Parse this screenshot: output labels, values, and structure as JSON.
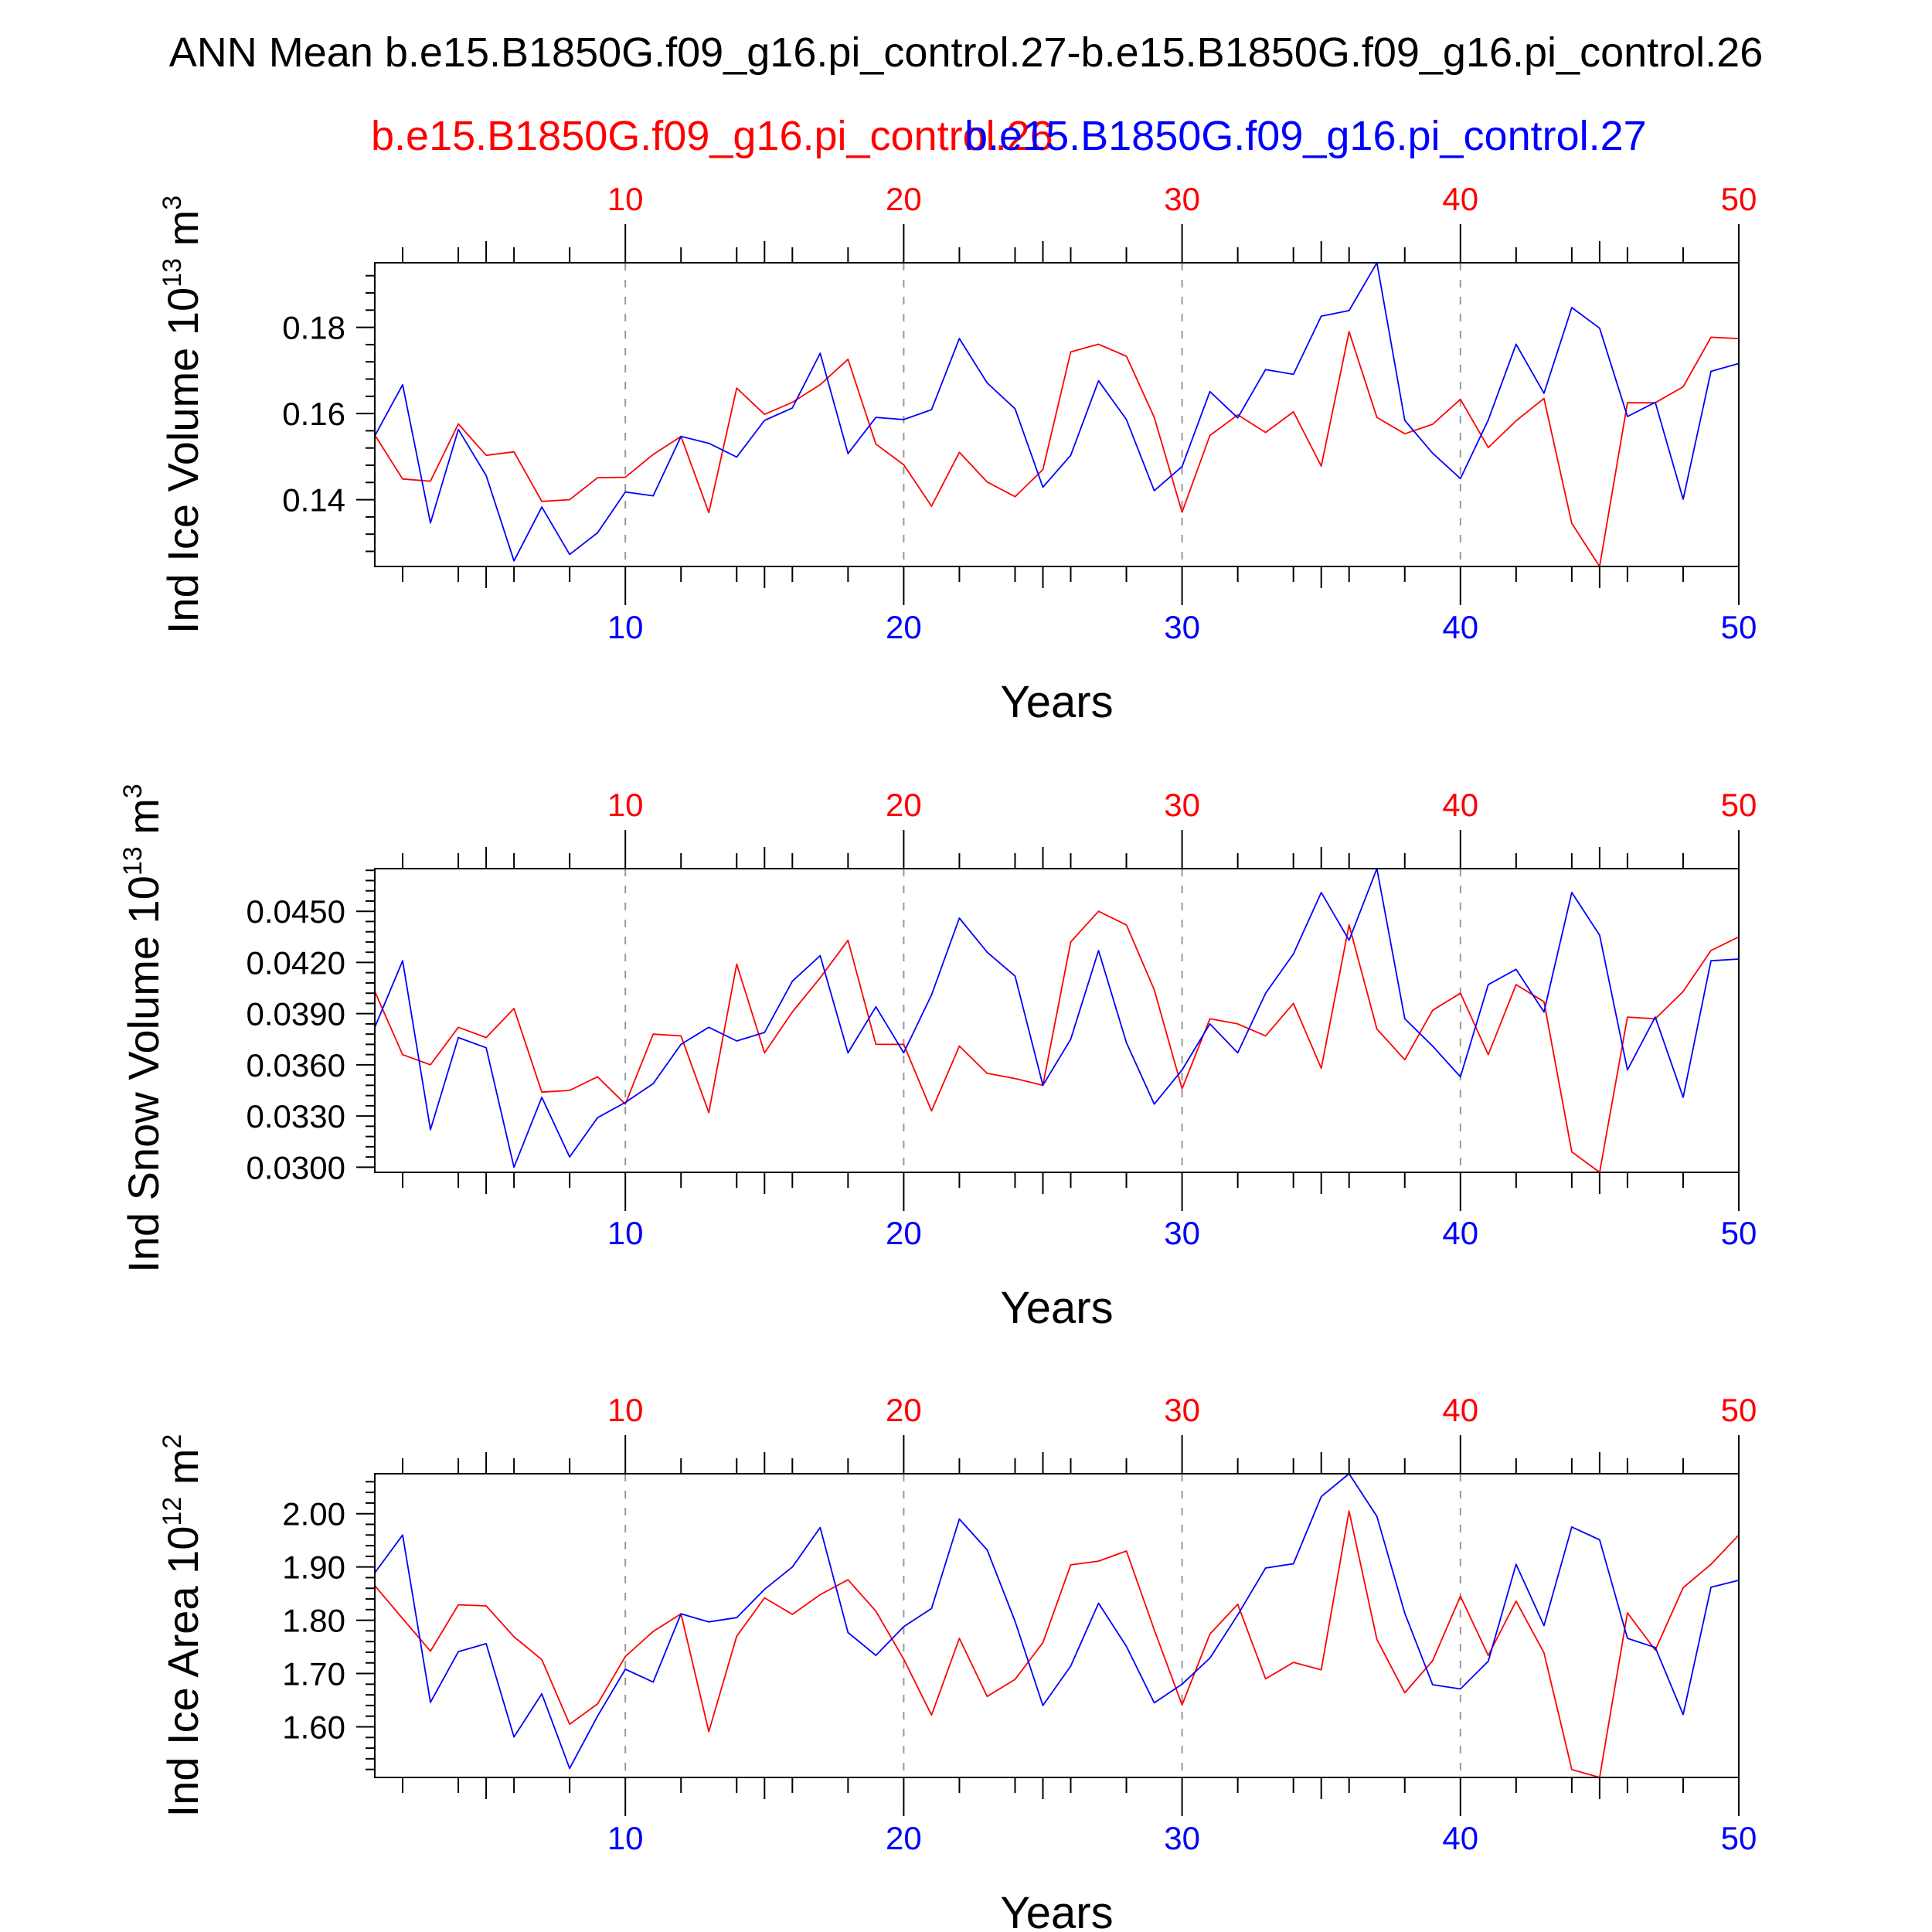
{
  "title": "ANN Mean b.e15.B1850G.f09_g16.pi_control.27-b.e15.B1850G.f09_g16.pi_control.26",
  "legend": {
    "red_label": "b.e15.B1850G.f09_g16.pi_control.26",
    "blue_label": "b.e15.B1850G.f09_g16.pi_control.27"
  },
  "colors": {
    "red": "#ff0000",
    "blue": "#0000ff",
    "axis": "#000000",
    "grid": "#999999"
  },
  "chart_data": [
    {
      "type": "line",
      "ylabel_main": "Ind Ice Volume 10",
      "ylabel_exp": "13",
      "ylabel_unit": " m",
      "ylabel_unit_exp": "3",
      "xlabel": "Years",
      "xlim": [
        1,
        50
      ],
      "ylim": [
        0.1245,
        0.195
      ],
      "xticks": [
        10,
        20,
        30,
        40,
        50
      ],
      "xtick_labels": [
        "10",
        "20",
        "30",
        "40",
        "50"
      ],
      "yticks": [
        0.14,
        0.16,
        0.18
      ],
      "ytick_labels": [
        "0.14",
        "0.16",
        "0.18"
      ],
      "grid": "vertical-dashed",
      "series": [
        {
          "name": "b.e15.B1850G.f09_g16.pi_control.26",
          "color": "red",
          "values": [
            0.155,
            0.1448,
            0.1443,
            0.1576,
            0.1503,
            0.1511,
            0.1396,
            0.14,
            0.1451,
            0.1452,
            0.1505,
            0.1547,
            0.137,
            0.1659,
            0.1598,
            0.1626,
            0.1667,
            0.1726,
            0.1529,
            0.1481,
            0.1385,
            0.151,
            0.1441,
            0.1407,
            0.147,
            0.1743,
            0.1761,
            0.1733,
            0.1591,
            0.1371,
            0.1549,
            0.1597,
            0.1556,
            0.1604,
            0.1478,
            0.179,
            0.1591,
            0.1553,
            0.1575,
            0.1633,
            0.1521,
            0.1583,
            0.1635,
            0.1345,
            0.1245,
            0.1625,
            0.1625,
            0.1662,
            0.1777,
            0.1774
          ]
        },
        {
          "name": "b.e15.B1850G.f09_g16.pi_control.27",
          "color": "blue",
          "values": [
            0.1548,
            0.1667,
            0.1346,
            0.1563,
            0.1456,
            0.1258,
            0.1383,
            0.1273,
            0.1323,
            0.1418,
            0.1409,
            0.1547,
            0.1531,
            0.1499,
            0.1584,
            0.1613,
            0.174,
            0.1507,
            0.1591,
            0.1586,
            0.1609,
            0.1774,
            0.1671,
            0.1611,
            0.1429,
            0.1503,
            0.1676,
            0.1586,
            0.1421,
            0.1477,
            0.1651,
            0.159,
            0.1702,
            0.1691,
            0.1826,
            0.1839,
            0.195,
            0.1584,
            0.1508,
            0.1449,
            0.1585,
            0.1761,
            0.1647,
            0.1846,
            0.1798,
            0.1593,
            0.1626,
            0.1401,
            0.1698,
            0.1716
          ]
        }
      ]
    },
    {
      "type": "line",
      "ylabel_main": "Ind Snow Volume 10",
      "ylabel_exp": "13",
      "ylabel_unit": " m",
      "ylabel_unit_exp": "3",
      "xlabel": "Years",
      "xlim": [
        1,
        50
      ],
      "ylim": [
        0.0297,
        0.0475
      ],
      "xticks": [
        10,
        20,
        30,
        40,
        50
      ],
      "xtick_labels": [
        "10",
        "20",
        "30",
        "40",
        "50"
      ],
      "yticks": [
        0.03,
        0.033,
        0.036,
        0.039,
        0.042,
        0.045
      ],
      "ytick_labels": [
        "0.0300",
        "0.0330",
        "0.0360",
        "0.0390",
        "0.0420",
        "0.0450"
      ],
      "grid": "vertical-dashed",
      "series": [
        {
          "name": "b.e15.B1850G.f09_g16.pi_control.26",
          "color": "red",
          "values": [
            0.0403,
            0.0366,
            0.036,
            0.0382,
            0.0376,
            0.0393,
            0.0344,
            0.0345,
            0.0353,
            0.0337,
            0.0378,
            0.0377,
            0.0332,
            0.0419,
            0.0367,
            0.0391,
            0.0411,
            0.0433,
            0.0372,
            0.0372,
            0.0333,
            0.0371,
            0.0355,
            0.0352,
            0.0348,
            0.0432,
            0.045,
            0.0442,
            0.0404,
            0.0346,
            0.0387,
            0.0384,
            0.0377,
            0.0396,
            0.0358,
            0.0442,
            0.0381,
            0.0363,
            0.0392,
            0.0402,
            0.0366,
            0.0407,
            0.0397,
            0.0309,
            0.0297,
            0.0388,
            0.0387,
            0.0403,
            0.0427,
            0.0435
          ]
        },
        {
          "name": "b.e15.B1850G.f09_g16.pi_control.27",
          "color": "blue",
          "values": [
            0.0382,
            0.0421,
            0.0322,
            0.0376,
            0.037,
            0.03,
            0.0341,
            0.0306,
            0.0329,
            0.0338,
            0.0349,
            0.0372,
            0.0382,
            0.0374,
            0.0379,
            0.0409,
            0.0424,
            0.0367,
            0.0394,
            0.0367,
            0.0401,
            0.0446,
            0.0426,
            0.0412,
            0.0348,
            0.0375,
            0.0427,
            0.0373,
            0.0337,
            0.0357,
            0.0384,
            0.0367,
            0.0402,
            0.0425,
            0.0461,
            0.0433,
            0.0475,
            0.0387,
            0.0371,
            0.0353,
            0.0407,
            0.0416,
            0.0391,
            0.0461,
            0.0436,
            0.0357,
            0.0388,
            0.0341,
            0.0421,
            0.0422
          ]
        }
      ]
    },
    {
      "type": "line",
      "ylabel_main": "Ind Ice Area 10",
      "ylabel_exp": "12",
      "ylabel_unit": " m",
      "ylabel_unit_exp": "2",
      "xlabel": "Years",
      "xlim": [
        1,
        50
      ],
      "ylim": [
        1.505,
        2.075
      ],
      "xticks": [
        10,
        20,
        30,
        40,
        50
      ],
      "xtick_labels": [
        "10",
        "20",
        "30",
        "40",
        "50"
      ],
      "yticks": [
        1.6,
        1.7,
        1.8,
        1.9,
        2.0
      ],
      "ytick_labels": [
        "1.60",
        "1.70",
        "1.80",
        "1.90",
        "2.00"
      ],
      "grid": "vertical-dashed",
      "series": [
        {
          "name": "b.e15.B1850G.f09_g16.pi_control.26",
          "color": "red",
          "values": [
            1.865,
            1.803,
            1.742,
            1.829,
            1.827,
            1.769,
            1.726,
            1.605,
            1.643,
            1.732,
            1.779,
            1.812,
            1.591,
            1.77,
            1.842,
            1.811,
            1.848,
            1.876,
            1.817,
            1.727,
            1.622,
            1.766,
            1.657,
            1.689,
            1.758,
            1.904,
            1.911,
            1.93,
            1.782,
            1.641,
            1.774,
            1.83,
            1.69,
            1.721,
            1.707,
            2.005,
            1.764,
            1.664,
            1.724,
            1.845,
            1.734,
            1.836,
            1.739,
            1.52,
            1.505,
            1.814,
            1.744,
            1.861,
            1.905,
            1.96
          ]
        },
        {
          "name": "b.e15.B1850G.f09_g16.pi_control.27",
          "color": "blue",
          "values": [
            1.889,
            1.96,
            1.646,
            1.741,
            1.756,
            1.581,
            1.662,
            1.522,
            1.62,
            1.708,
            1.684,
            1.812,
            1.797,
            1.805,
            1.858,
            1.9,
            1.974,
            1.777,
            1.734,
            1.788,
            1.822,
            1.99,
            1.932,
            1.798,
            1.64,
            1.714,
            1.832,
            1.751,
            1.645,
            1.68,
            1.729,
            1.81,
            1.898,
            1.906,
            2.032,
            2.075,
            1.995,
            1.813,
            1.679,
            1.671,
            1.723,
            1.905,
            1.79,
            1.975,
            1.951,
            1.766,
            1.749,
            1.623,
            1.862,
            1.875
          ]
        }
      ]
    }
  ]
}
